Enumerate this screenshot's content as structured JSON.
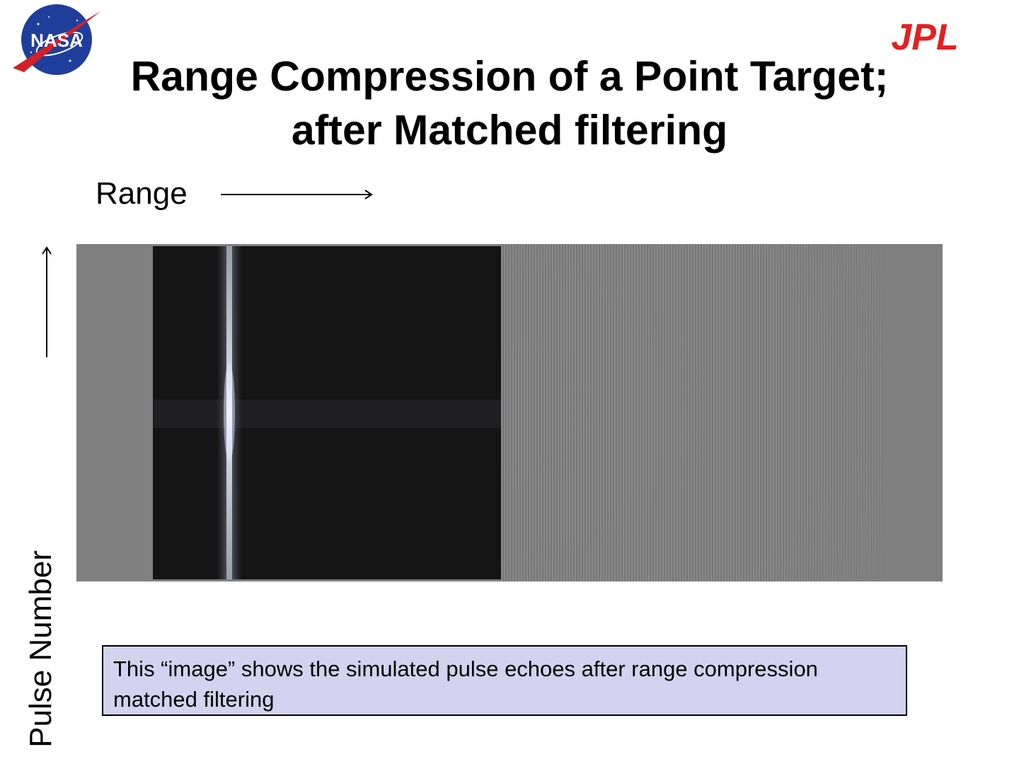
{
  "header": {
    "nasa_logo_text": "NASA",
    "jpl_logo_text": "JPL",
    "title_line1": "Range Compression of a Point Target;",
    "title_line2": "after Matched filtering"
  },
  "figure": {
    "range_label": "Range",
    "pulse_label": "Pulse Number"
  },
  "caption": {
    "text": "This “image” shows the simulated pulse echoes after range compression matched filtering"
  },
  "colors": {
    "jpl_red": "#e41f1f",
    "nasa_blue": "#1f3e9c",
    "nasa_red": "#d42027",
    "caption_bg": "#d3d3ef",
    "image_gray": "#808080"
  }
}
